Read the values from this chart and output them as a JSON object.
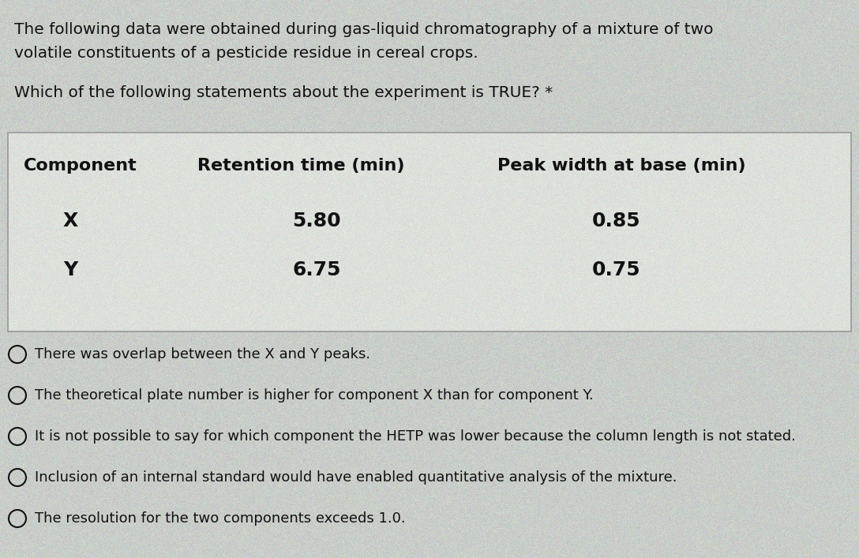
{
  "background_color": "#c8cec8",
  "table_bg_color": "#d8ddd8",
  "title_line1": "The following data were obtained during gas-liquid chromatography of a mixture of two",
  "title_line2": "volatile constituents of a pesticide residue in cereal crops.",
  "question": "Which of the following statements about the experiment is TRUE? *",
  "table_header": [
    "Component",
    "Retention time (min)",
    "Peak width at base (min)"
  ],
  "table_rows": [
    [
      "X",
      "5.80",
      "0.85"
    ],
    [
      "Y",
      "6.75",
      "0.75"
    ]
  ],
  "options": [
    "There was overlap between the X and Y peaks.",
    "The theoretical plate number is higher for component X than for component Y.",
    "It is not possible to say for which component the HETP was lower because the column length is not stated.",
    "Inclusion of an internal standard would have enabled quantitative analysis of the mixture.",
    "The resolution for the two components exceeds 1.0."
  ],
  "text_color": "#111111",
  "table_border_color": "#999999",
  "title_fontsize": 14.5,
  "question_fontsize": 14.5,
  "header_fontsize": 16,
  "data_fontsize": 18,
  "option_fontsize": 13
}
